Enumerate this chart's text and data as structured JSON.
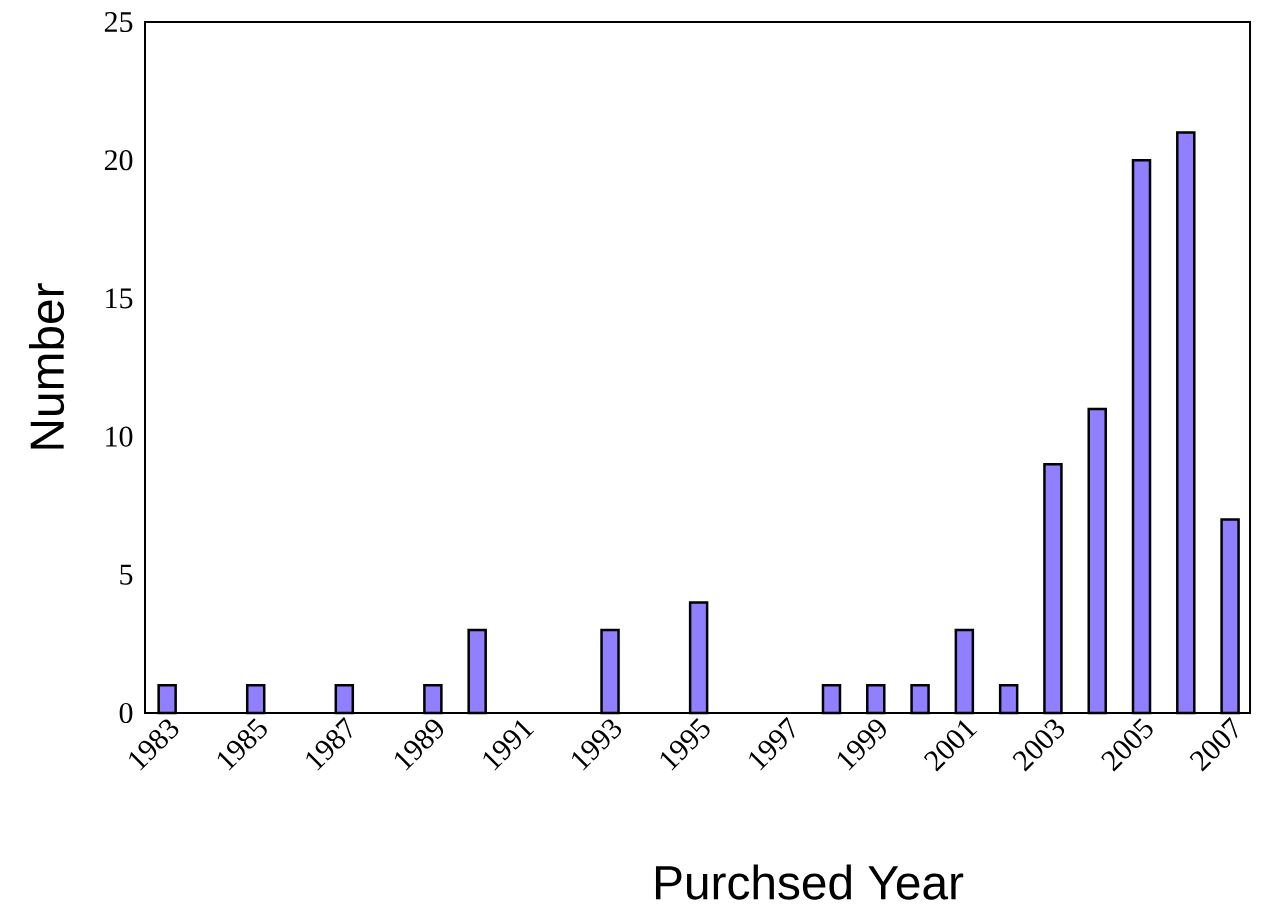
{
  "chart_data": {
    "type": "bar",
    "xlabel": "Purchsed Year",
    "ylabel": "Number",
    "categories": [
      "1983",
      null,
      "1985",
      null,
      "1987",
      null,
      "1989",
      null,
      "1991",
      null,
      "1993",
      null,
      "1995",
      null,
      "1997",
      null,
      "1999",
      null,
      "2001",
      null,
      "2003",
      null,
      "2005",
      null,
      "2007"
    ],
    "values": [
      1,
      0,
      1,
      0,
      1,
      0,
      1,
      3,
      0,
      0,
      3,
      0,
      4,
      0,
      0,
      1,
      1,
      1,
      3,
      1,
      9,
      11,
      20,
      21,
      7
    ],
    "color": "#9080ff",
    "ylim": [
      0,
      25
    ],
    "yticks": [
      0,
      5,
      10,
      15,
      20,
      25
    ],
    "grid": false
  }
}
